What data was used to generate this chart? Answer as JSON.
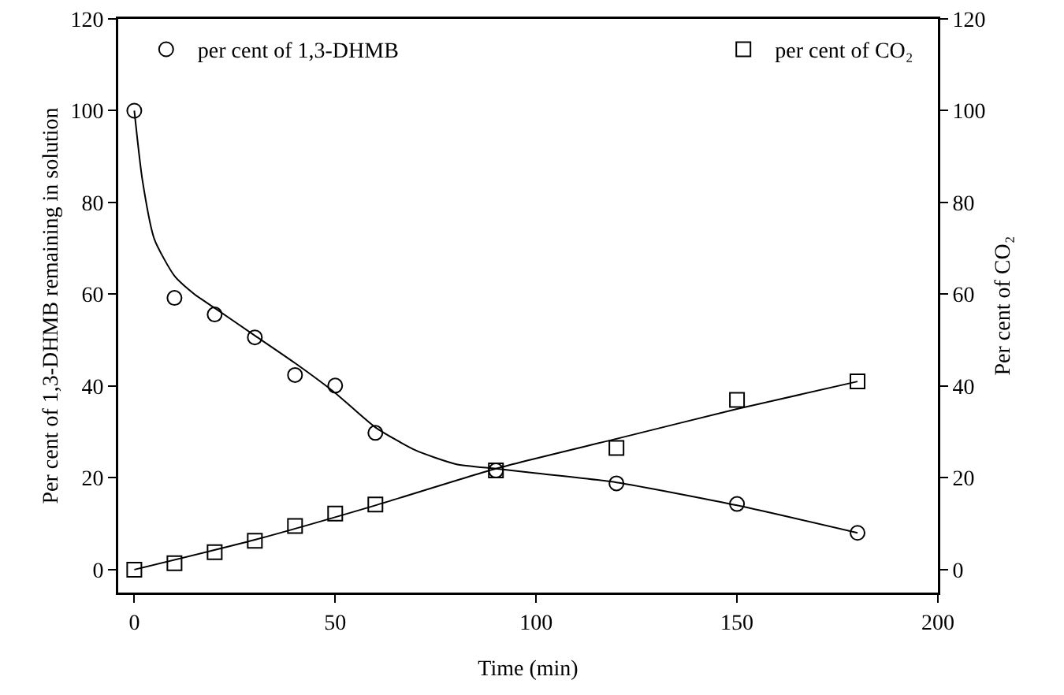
{
  "chart_data": {
    "type": "scatter",
    "xlabel": "Time (min)",
    "ylabel": "Per cent of 1,3-DHMB remaining in solution",
    "y2label": "Per cent of CO₂",
    "xlim": [
      -4,
      200
    ],
    "xticks": [
      0,
      50,
      100,
      150,
      200
    ],
    "ylim": [
      -5,
      120
    ],
    "yticks": [
      0,
      20,
      40,
      60,
      80,
      100,
      120
    ],
    "y2lim": [
      -5,
      120
    ],
    "y2ticks": [
      0,
      20,
      40,
      60,
      80,
      100,
      120
    ],
    "grid": false,
    "legend": "top",
    "series": [
      {
        "name": "per cent of 1,3-DHMB",
        "marker": "circle",
        "color": "#000000",
        "x": [
          0,
          10,
          20,
          30,
          40,
          50,
          60,
          90,
          120,
          150,
          180
        ],
        "values": [
          100,
          59.2,
          55.6,
          50.6,
          42.4,
          40.1,
          29.8,
          21.6,
          18.8,
          14.3,
          8
        ]
      },
      {
        "name": "per cent of CO₂",
        "marker": "square",
        "axis": "y2",
        "color": "#000000",
        "x": [
          0,
          10,
          20,
          30,
          40,
          50,
          60,
          90,
          120,
          150,
          180
        ],
        "values": [
          0,
          1.4,
          3.8,
          6.3,
          9.5,
          12.2,
          14.2,
          21.6,
          26.5,
          37,
          41
        ]
      },
      {
        "type": "line",
        "marker": "none",
        "color": "#000000",
        "x": [
          0,
          2,
          5,
          10,
          15,
          20,
          30,
          40,
          50,
          60,
          70,
          80,
          90,
          100,
          120,
          150,
          180
        ],
        "values": [
          100,
          85,
          72,
          64,
          60,
          57,
          51,
          45,
          38.5,
          31,
          26,
          23,
          22,
          21,
          19,
          14,
          8
        ]
      },
      {
        "type": "line",
        "marker": "none",
        "axis": "y2",
        "color": "#000000",
        "x": [
          0,
          30,
          60,
          90,
          120,
          150,
          180
        ],
        "values": [
          0,
          6.5,
          14,
          22,
          28.5,
          35,
          41
        ]
      }
    ]
  }
}
